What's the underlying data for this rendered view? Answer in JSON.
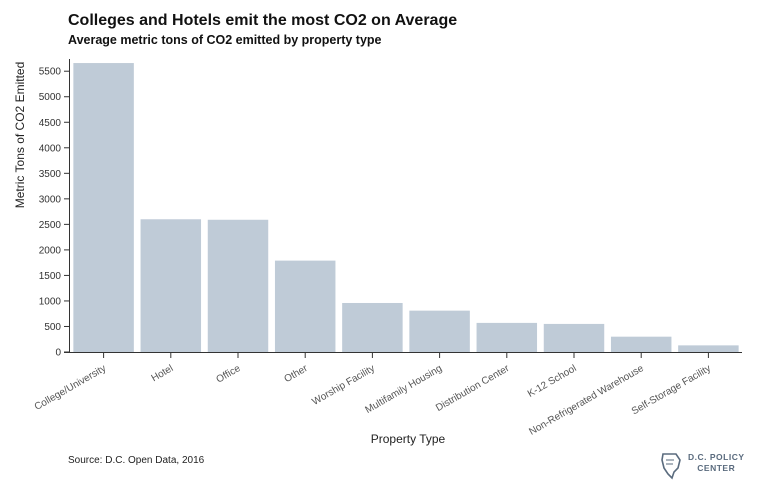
{
  "header": {
    "title": "Colleges and Hotels emit the most CO2 on Average",
    "subtitle": "Average metric tons of CO2 emitted by property type"
  },
  "footer": {
    "source": "Source: D.C. Open Data, 2016",
    "logo_line1": "D.C. POLICY",
    "logo_line2": "CENTER"
  },
  "colors": {
    "bar": "#bfcbd7",
    "axis": "#333333",
    "logo": "#5a6b7e"
  },
  "chart_data": {
    "type": "bar",
    "title": "Colleges and Hotels emit the most CO2 on Average",
    "subtitle": "Average metric tons of CO2 emitted by property type",
    "xlabel": "Property Type",
    "ylabel": "Metric Tons of CO2 Emitted",
    "ylim": [
      0,
      5700
    ],
    "yticks": [
      0,
      500,
      1000,
      1500,
      2000,
      2500,
      3000,
      3500,
      4000,
      4500,
      5000,
      5500
    ],
    "grid": false,
    "categories": [
      "College/University",
      "Hotel",
      "Office",
      "Other",
      "Worship Facility",
      "Multifamily Housing",
      "Distribution Center",
      "K-12 School",
      "Non-Refrigerated Warehouse",
      "Self-Storage Facility"
    ],
    "values": [
      5660,
      2600,
      2590,
      1790,
      960,
      810,
      570,
      550,
      300,
      130
    ]
  }
}
